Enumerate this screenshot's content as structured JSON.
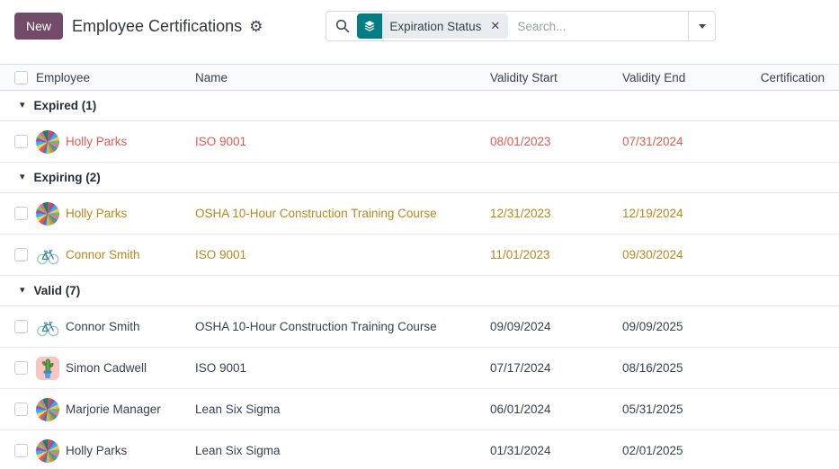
{
  "header": {
    "new_button": "New",
    "title": "Employee Certifications"
  },
  "search": {
    "facet_label": "Expiration Status",
    "placeholder": "Search..."
  },
  "icons": {
    "gear": "⚙",
    "close": "✕",
    "group_caret": "▾"
  },
  "colors": {
    "accent_purple": "#714B67",
    "facet_teal": "#017e84",
    "expired_red": "#de5b53",
    "expiring_gold": "#b9861c"
  },
  "table": {
    "columns": [
      "Employee",
      "Name",
      "Validity Start",
      "Validity End",
      "Certification"
    ],
    "groups": [
      {
        "label": "Expired (1)",
        "status": "expired",
        "rows": [
          {
            "employee": "Holly Parks",
            "avatar": "pinwheel",
            "name": "ISO 9001",
            "validity_start": "08/01/2023",
            "validity_end": "07/31/2024",
            "certification": ""
          }
        ]
      },
      {
        "label": "Expiring (2)",
        "status": "expiring",
        "rows": [
          {
            "employee": "Holly Parks",
            "avatar": "pinwheel",
            "name": "OSHA 10-Hour Construction Training Course",
            "validity_start": "12/31/2023",
            "validity_end": "12/19/2024",
            "certification": ""
          },
          {
            "employee": "Connor Smith",
            "avatar": "bicycle",
            "name": "ISO 9001",
            "validity_start": "11/01/2023",
            "validity_end": "09/30/2024",
            "certification": ""
          }
        ]
      },
      {
        "label": "Valid (7)",
        "status": "valid",
        "rows": [
          {
            "employee": "Connor Smith",
            "avatar": "bicycle",
            "name": "OSHA 10-Hour Construction Training Course",
            "validity_start": "09/09/2024",
            "validity_end": "09/09/2025",
            "certification": ""
          },
          {
            "employee": "Simon Cadwell",
            "avatar": "cactus",
            "name": "ISO 9001",
            "validity_start": "07/17/2024",
            "validity_end": "08/16/2025",
            "certification": ""
          },
          {
            "employee": "Marjorie Manager",
            "avatar": "pinwheel",
            "name": "Lean Six Sigma",
            "validity_start": "06/01/2024",
            "validity_end": "05/31/2025",
            "certification": ""
          },
          {
            "employee": "Holly Parks",
            "avatar": "pinwheel",
            "name": "Lean Six Sigma",
            "validity_start": "01/31/2024",
            "validity_end": "02/01/2025",
            "certification": ""
          }
        ]
      }
    ]
  }
}
